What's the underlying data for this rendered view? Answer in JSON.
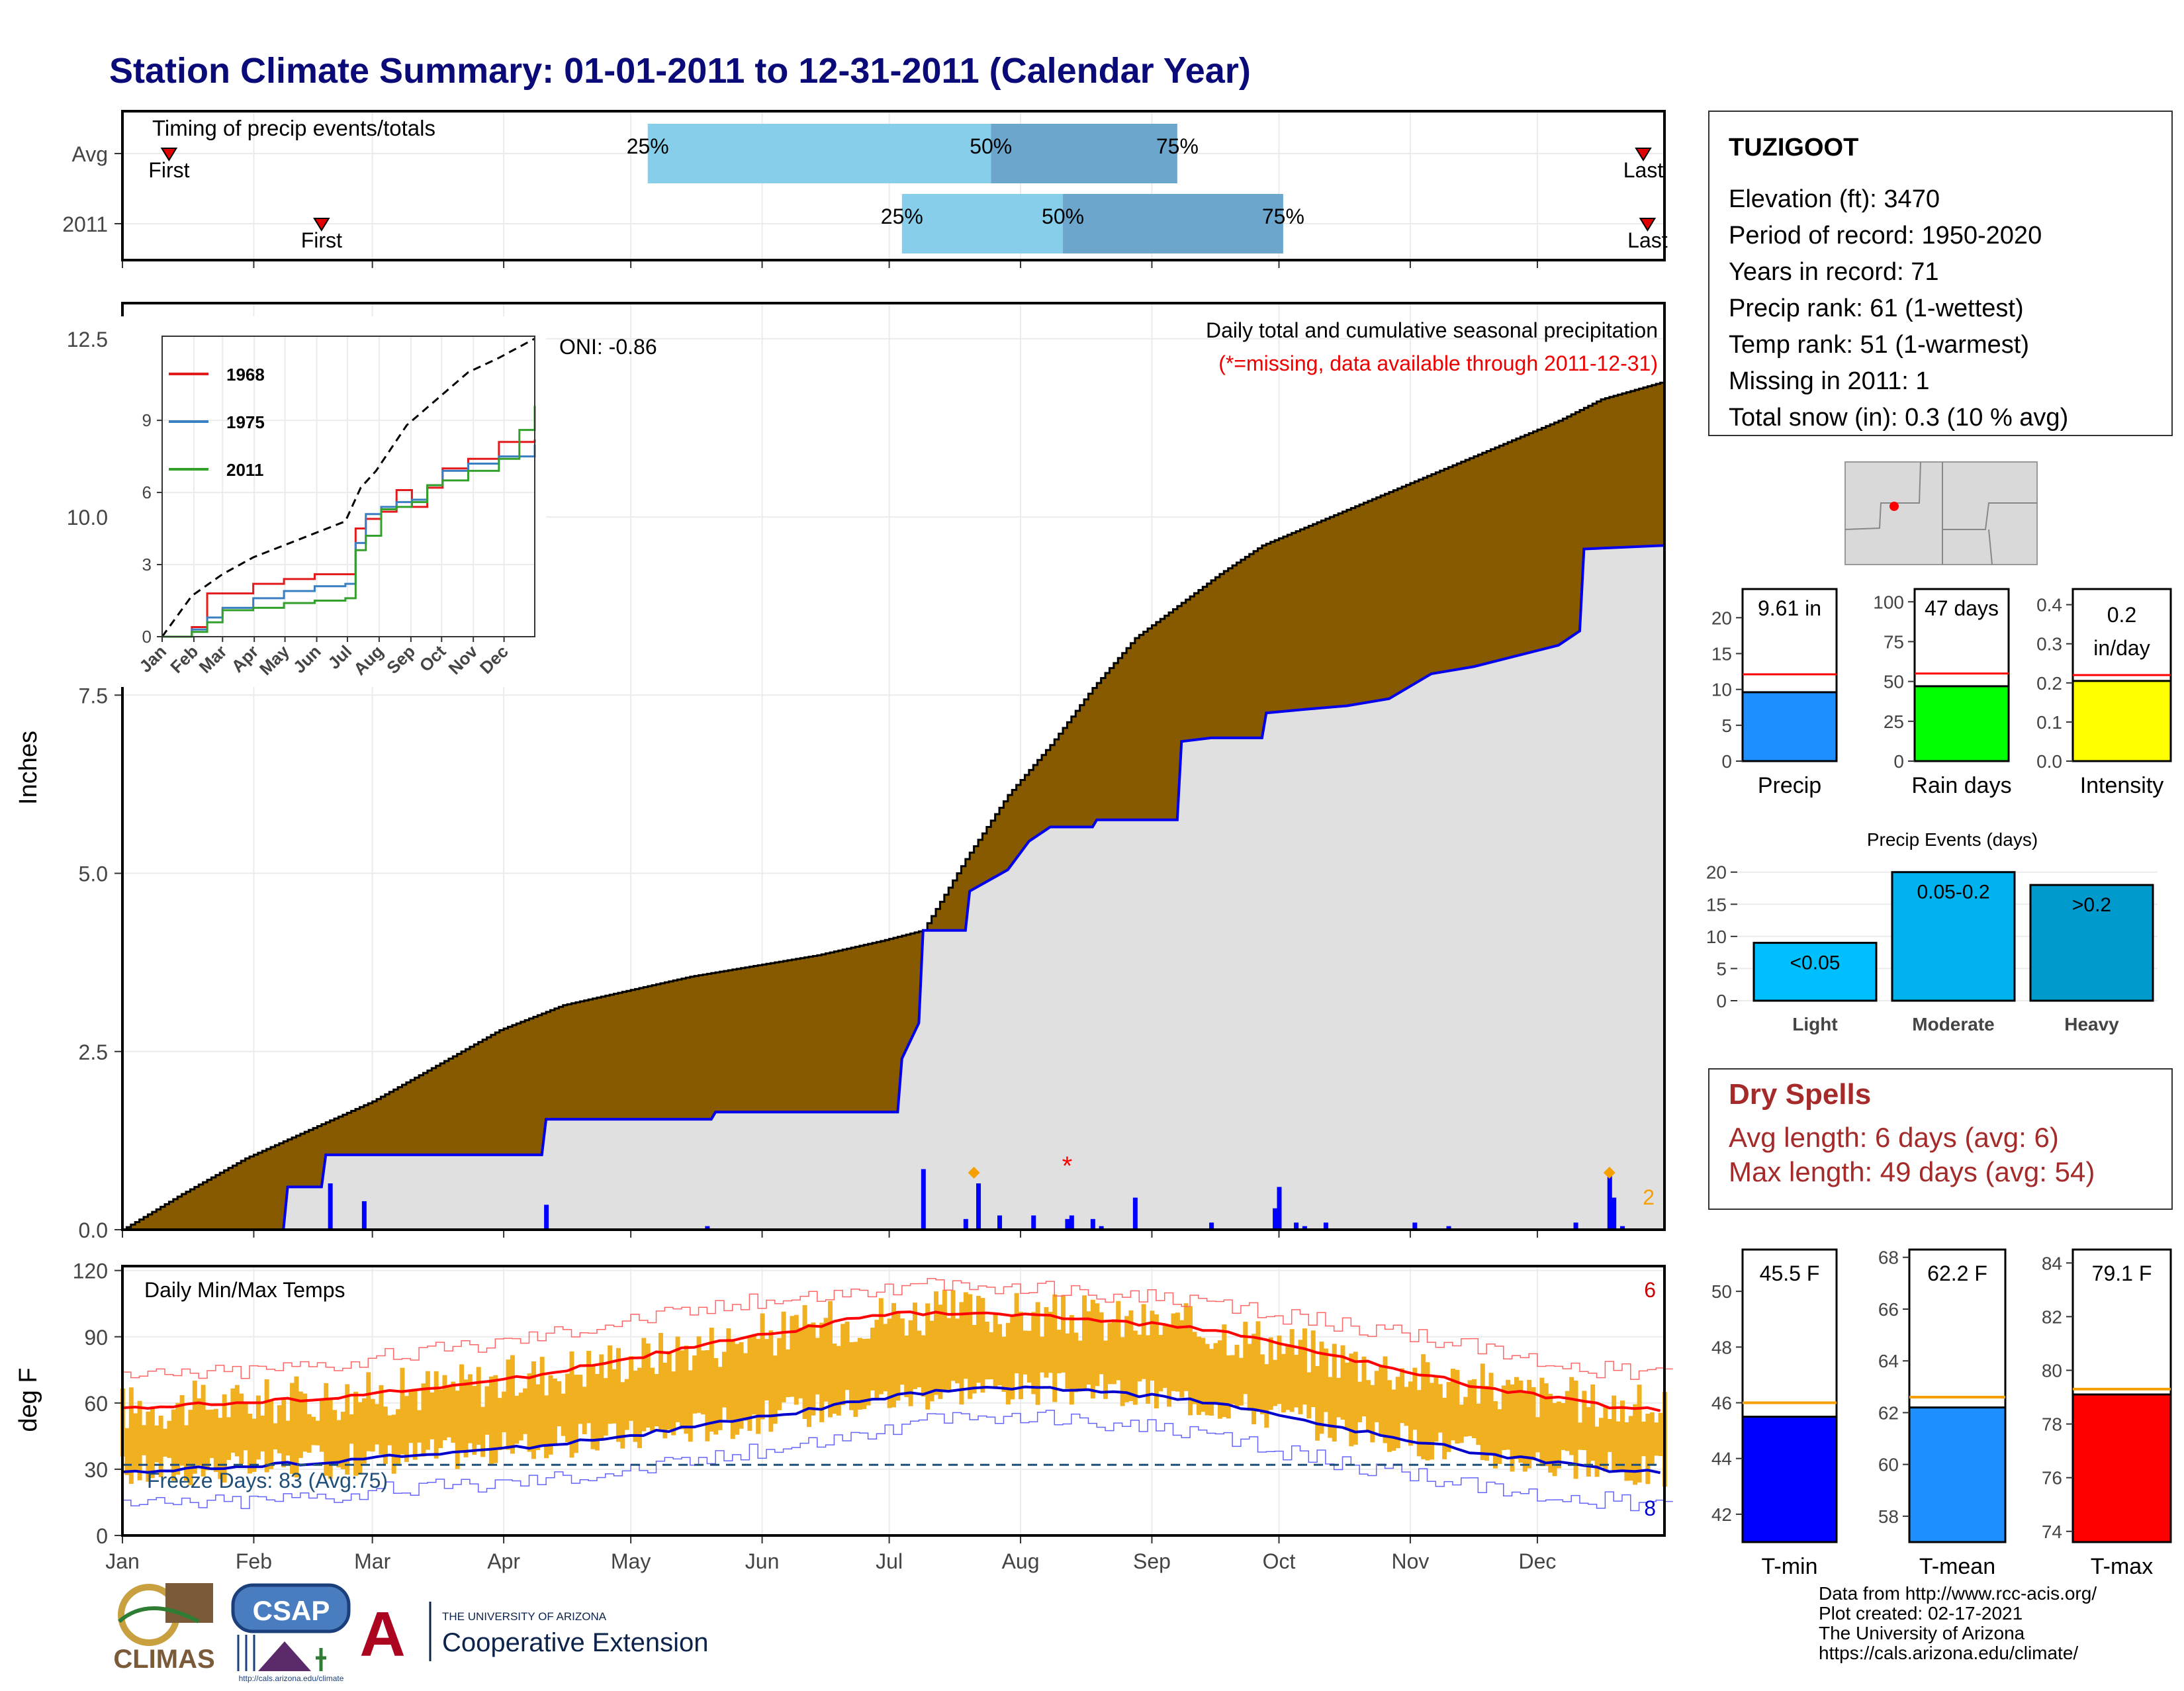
{
  "title": "Station Climate Summary: 01-01-2011 to 12-31-2011 (Calendar Year)",
  "colors": {
    "title": "#0a0a78",
    "precip_fill": "#875a00",
    "avg_fill": "#e0e0e0",
    "avg_line": "#0000ee",
    "tmax": "#ff0000",
    "tmin": "#0000cc",
    "range_bar": "#f0b020",
    "dry_spells": "#a52a2a",
    "missing": "#ff0000",
    "orange_marker": "#f5a000"
  },
  "timing": {
    "title": "Timing of precip events/totals",
    "rows": [
      {
        "label": "Avg",
        "first_doy": 12,
        "last_doy": 360,
        "q25_doy": 125,
        "q50_doy": 206,
        "q75_doy": 250,
        "q25_label": "25%",
        "q50_label": "50%",
        "q75_label": "75%",
        "first_label": "First",
        "last_label": "Last"
      },
      {
        "label": "2011",
        "first_doy": 48,
        "last_doy": 361,
        "q25_doy": 185,
        "q50_doy": 223,
        "q75_doy": 275,
        "q25_label": "25%",
        "q50_label": "50%",
        "q75_label": "75%",
        "first_label": "First",
        "last_label": "Last"
      }
    ]
  },
  "precip_panel": {
    "header": "Daily total and cumulative seasonal precipitation",
    "subheader": "(*=missing, data available through 2011-12-31)",
    "ylabel": "Inches",
    "y_ticks": [
      "0.0",
      "2.5",
      "5.0",
      "7.5",
      "10.0",
      "12.5"
    ],
    "ylim": [
      0,
      13
    ],
    "oni": "ONI: -0.86",
    "corner_count": "2",
    "months": [
      "Jan",
      "Feb",
      "Mar",
      "Apr",
      "May",
      "Jun",
      "Jul",
      "Aug",
      "Sep",
      "Oct",
      "Nov",
      "Dec"
    ]
  },
  "inset": {
    "y_ticks": [
      "0",
      "3",
      "6",
      "9"
    ],
    "months": [
      "Jan",
      "Feb",
      "Mar",
      "Apr",
      "May",
      "Jun",
      "Jul",
      "Aug",
      "Sep",
      "Oct",
      "Nov",
      "Dec"
    ],
    "legend": [
      "1968",
      "1975",
      "2011"
    ],
    "legend_colors": [
      "#e31a1c",
      "#3a7fc1",
      "#33a02c"
    ]
  },
  "temp_panel": {
    "header": "Daily Min/Max Temps",
    "ylabel": "deg F",
    "y_ticks": [
      "0",
      "30",
      "60",
      "90",
      "120"
    ],
    "ylim": [
      0,
      122
    ],
    "freeze": "Freeze Days: 83 (Avg:75)",
    "freeze_line": 32,
    "count_top": "6",
    "count_bottom": "8",
    "months": [
      "Jan",
      "Feb",
      "Mar",
      "Apr",
      "May",
      "Jun",
      "Jul",
      "Aug",
      "Sep",
      "Oct",
      "Nov",
      "Dec"
    ]
  },
  "station": {
    "name": "TUZIGOOT",
    "lines": [
      "Elevation (ft): 3470",
      "Period of record: 1950-2020",
      "Years in record: 71",
      "Precip rank: 61 (1-wettest)",
      "Temp rank: 51 (1-warmest)",
      "Missing in 2011: 1",
      "Total snow (in): 0.3 (10 % avg)"
    ]
  },
  "summary_bars": [
    {
      "label": "Precip",
      "value_label": "9.61 in",
      "value": 9.61,
      "avg": 12.1,
      "ylim": [
        0,
        24
      ],
      "ticks": [
        "0",
        "5",
        "10",
        "15",
        "20"
      ],
      "color": "#1e8fff"
    },
    {
      "label": "Rain days",
      "value_label": "47 days",
      "value": 47,
      "avg": 55,
      "ylim": [
        0,
        108
      ],
      "ticks": [
        "0",
        "25",
        "50",
        "75",
        "100"
      ],
      "color": "#00ff00"
    },
    {
      "label": "Intensity",
      "value_label": "0.2 in/day",
      "value_label_1": "0.2",
      "value_label_2": "in/day",
      "value": 0.205,
      "avg": 0.22,
      "ylim": [
        0,
        0.44
      ],
      "ticks": [
        "0.0",
        "0.1",
        "0.2",
        "0.3",
        "0.4"
      ],
      "color": "#ffff00"
    }
  ],
  "events": {
    "title": "Precip Events (days)",
    "ticks": [
      "0",
      "5",
      "10",
      "15",
      "20"
    ],
    "ylim": [
      0,
      21
    ],
    "bars": [
      {
        "category": "Light",
        "label": "<0.05",
        "value": 9,
        "color": "#00bfff"
      },
      {
        "category": "Moderate",
        "label": "0.05-0.2",
        "value": 20,
        "color": "#00b2ee"
      },
      {
        "category": "Heavy",
        "label": ">0.2",
        "value": 18,
        "color": "#009acd"
      }
    ]
  },
  "dry_spells": {
    "title": "Dry Spells",
    "avg": "Avg length: 6 days (avg: 6)",
    "max": "Max length: 49 days (avg: 54)"
  },
  "temp_bars": [
    {
      "label": "T-min",
      "value_label": "45.5 F",
      "value": 45.5,
      "avg": 46.0,
      "ylim": [
        41,
        51.5
      ],
      "ticks": [
        "42",
        "44",
        "46",
        "48",
        "50"
      ],
      "color": "#0000ff"
    },
    {
      "label": "T-mean",
      "value_label": "62.2 F",
      "value": 62.2,
      "avg": 62.6,
      "ylim": [
        57,
        68.3
      ],
      "ticks": [
        "58",
        "60",
        "62",
        "64",
        "66",
        "68"
      ],
      "color": "#1e8fff"
    },
    {
      "label": "T-max",
      "value_label": "79.1 F",
      "value": 79.1,
      "avg": 79.3,
      "ylim": [
        73.6,
        84.5
      ],
      "ticks": [
        "74",
        "76",
        "78",
        "80",
        "82",
        "84"
      ],
      "color": "#ff0000"
    }
  ],
  "footer": {
    "lines": [
      "Data from http://www.rcc-acis.org/",
      "Plot created: 02-17-2021",
      "The University of Arizona",
      "https://cals.arizona.edu/climate/"
    ],
    "climas": "CLIMAS",
    "csap": "CSAP",
    "csap_url": "http://cals.arizona.edu/climate",
    "ua_small": "THE UNIVERSITY OF ARIZONA",
    "ua_big": "Cooperative Extension",
    "ua_letter": "A"
  },
  "chart_data": [
    {
      "type": "area",
      "title": "Daily total and cumulative seasonal precipitation",
      "ylabel": "Inches",
      "ylim": [
        0,
        13
      ],
      "x_unit": "day of year 2011",
      "series": [
        {
          "name": "cumulative",
          "x": [
            1,
            15,
            30,
            45,
            60,
            75,
            90,
            105,
            120,
            135,
            150,
            165,
            180,
            190,
            200,
            210,
            220,
            230,
            240,
            250,
            260,
            270,
            280,
            290,
            300,
            310,
            320,
            330,
            340,
            350,
            365
          ],
          "values": [
            0,
            0.5,
            1.0,
            1.4,
            1.8,
            2.3,
            2.8,
            3.15,
            3.35,
            3.55,
            3.7,
            3.85,
            4.05,
            4.2,
            5.2,
            6.1,
            6.8,
            7.6,
            8.3,
            8.75,
            9.2,
            9.6,
            9.85,
            10.1,
            10.35,
            10.6,
            10.85,
            11.1,
            11.35,
            11.65,
            11.9
          ]
        },
        {
          "name": "average",
          "x": [
            1,
            39,
            40,
            48,
            49,
            100,
            101,
            140,
            141,
            184,
            185,
            189,
            190,
            200,
            201,
            210,
            215,
            220,
            225,
            230,
            231,
            250,
            251,
            258,
            270,
            271,
            280,
            290,
            300,
            310,
            320,
            340,
            345,
            346,
            365
          ],
          "values": [
            0,
            0,
            0.6,
            0.6,
            1.05,
            1.05,
            1.55,
            1.55,
            1.65,
            1.65,
            2.4,
            2.9,
            4.2,
            4.2,
            4.75,
            5.05,
            5.45,
            5.65,
            5.65,
            5.65,
            5.75,
            5.75,
            6.85,
            6.9,
            6.9,
            7.25,
            7.3,
            7.35,
            7.45,
            7.8,
            7.9,
            8.2,
            8.4,
            9.55,
            9.6
          ]
        }
      ],
      "daily_bars": {
        "x": [
          50,
          58,
          101,
          139,
          190,
          200,
          203,
          208,
          216,
          224,
          225,
          230,
          232,
          240,
          258,
          273,
          274,
          278,
          280,
          285,
          306,
          314,
          344,
          352,
          353,
          355
        ],
        "values": [
          0.65,
          0.4,
          0.35,
          0.05,
          0.85,
          0.15,
          0.65,
          0.2,
          0.2,
          0.15,
          0.2,
          0.15,
          0.05,
          0.45,
          0.1,
          0.3,
          0.6,
          0.1,
          0.05,
          0.1,
          0.1,
          0.05,
          0.1,
          0.8,
          0.45,
          0.05
        ]
      },
      "missing_day": 224,
      "record_day_markers": [
        202,
        352
      ]
    },
    {
      "type": "line",
      "title": "",
      "ylim": [
        0,
        12.5
      ],
      "x_unit": "day of year",
      "series": [
        {
          "name": "",
          "x": [
            1,
            30,
            60,
            90,
            120,
            150,
            180,
            195,
            210,
            240,
            270,
            300,
            330,
            365
          ],
          "values": [
            0,
            1.7,
            2.6,
            3.3,
            3.8,
            4.3,
            4.8,
            6.2,
            6.9,
            8.8,
            9.9,
            11.0,
            11.6,
            12.4
          ]
        },
        {
          "name": "1968",
          "x": [
            1,
            30,
            45,
            60,
            90,
            120,
            150,
            180,
            190,
            200,
            215,
            230,
            245,
            260,
            275,
            300,
            330,
            365
          ],
          "values": [
            0,
            0.4,
            1.8,
            1.8,
            2.2,
            2.4,
            2.6,
            2.6,
            4.5,
            4.9,
            5.2,
            6.1,
            5.4,
            6.2,
            7.0,
            7.4,
            8.1,
            8.2
          ]
        },
        {
          "name": "1975",
          "x": [
            1,
            30,
            45,
            60,
            90,
            120,
            150,
            180,
            190,
            200,
            215,
            230,
            245,
            260,
            275,
            300,
            330,
            365
          ],
          "values": [
            0,
            0.3,
            0.8,
            1.2,
            1.6,
            1.9,
            2.1,
            2.2,
            3.9,
            5.1,
            5.4,
            5.6,
            5.7,
            6.3,
            6.9,
            7.2,
            7.5,
            8.0
          ]
        },
        {
          "name": "2011",
          "x": [
            1,
            30,
            45,
            60,
            90,
            120,
            150,
            180,
            190,
            200,
            215,
            230,
            245,
            260,
            275,
            300,
            330,
            350,
            365
          ],
          "values": [
            0,
            0.2,
            0.6,
            1.1,
            1.2,
            1.4,
            1.5,
            1.6,
            3.6,
            4.2,
            5.3,
            5.4,
            5.6,
            6.3,
            6.5,
            6.9,
            7.4,
            8.6,
            9.6
          ]
        }
      ]
    },
    {
      "type": "line",
      "title": "Daily Min/Max Temps",
      "ylabel": "deg F",
      "ylim": [
        0,
        122
      ],
      "x_unit": "day of year 2011",
      "series": [
        {
          "name": "",
          "x": [
            1,
            30,
            60,
            90,
            120,
            150,
            180,
            200,
            230,
            260,
            290,
            320,
            350,
            365
          ],
          "values": [
            58,
            60,
            64,
            70,
            80,
            90,
            100,
            101,
            98,
            93,
            80,
            68,
            59,
            57
          ]
        },
        {
          "name": "",
          "x": [
            1,
            30,
            60,
            90,
            120,
            150,
            180,
            200,
            230,
            260,
            290,
            320,
            350,
            365
          ],
          "values": [
            29,
            31,
            35,
            39,
            45,
            53,
            62,
            67,
            66,
            60,
            48,
            38,
            30,
            29
          ]
        },
        {
          "name": "",
          "x": [
            1,
            30,
            60,
            90,
            120,
            150,
            180,
            200,
            230,
            260,
            290,
            320,
            350,
            365
          ],
          "values": [
            72,
            75,
            80,
            88,
            98,
            106,
            112,
            113,
            110,
            104,
            95,
            85,
            75,
            74
          ]
        },
        {
          "name": "",
          "x": [
            1,
            30,
            60,
            90,
            120,
            150,
            180,
            200,
            230,
            260,
            290,
            320,
            350,
            365
          ],
          "values": [
            14,
            16,
            20,
            24,
            30,
            38,
            48,
            54,
            52,
            44,
            32,
            22,
            16,
            14
          ]
        }
      ],
      "freeze_line": 32
    },
    {
      "type": "bar",
      "title": "Precip Events (days)",
      "categories": [
        "Light",
        "Moderate",
        "Heavy"
      ],
      "values": [
        9,
        20,
        18
      ]
    }
  ]
}
